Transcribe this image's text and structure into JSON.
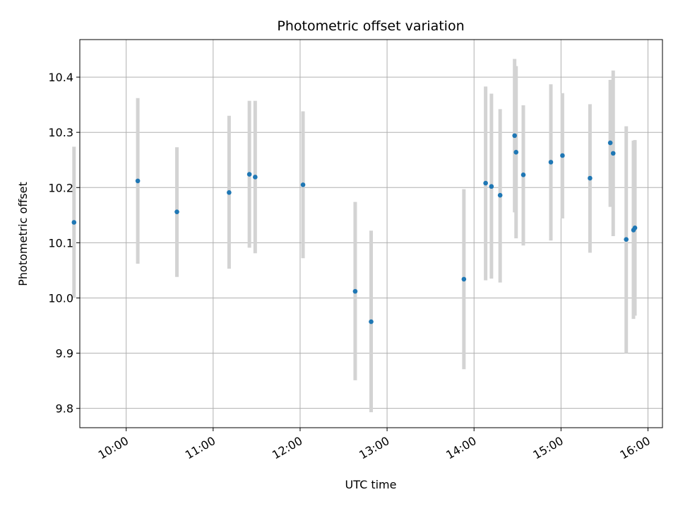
{
  "chart_data": {
    "type": "scatter",
    "title": "Photometric offset variation",
    "xlabel": "UTC time",
    "ylabel": "Photometric offset",
    "xlim": [
      "09:28",
      "16:10"
    ],
    "ylim": [
      9.765,
      10.468
    ],
    "x_ticks": [
      "10:00",
      "11:00",
      "12:00",
      "13:00",
      "14:00",
      "15:00",
      "16:00"
    ],
    "y_ticks": [
      "9.8",
      "9.9",
      "10.0",
      "10.1",
      "10.2",
      "10.3",
      "10.4"
    ],
    "grid": true,
    "marker_color": "#1f77b4",
    "errorbar_color": "#d3d3d3",
    "points": [
      {
        "x": "09:24",
        "y": 10.137,
        "ylo": 10.0,
        "yhi": 10.274
      },
      {
        "x": "10:08",
        "y": 10.212,
        "ylo": 10.062,
        "yhi": 10.362
      },
      {
        "x": "10:35",
        "y": 10.156,
        "ylo": 10.038,
        "yhi": 10.273
      },
      {
        "x": "11:11",
        "y": 10.191,
        "ylo": 10.053,
        "yhi": 10.33
      },
      {
        "x": "11:25",
        "y": 10.224,
        "ylo": 10.091,
        "yhi": 10.357
      },
      {
        "x": "11:29",
        "y": 10.219,
        "ylo": 10.081,
        "yhi": 10.357
      },
      {
        "x": "12:02",
        "y": 10.205,
        "ylo": 10.072,
        "yhi": 10.338
      },
      {
        "x": "12:38",
        "y": 10.012,
        "ylo": 9.851,
        "yhi": 10.174
      },
      {
        "x": "12:49",
        "y": 9.957,
        "ylo": 9.793,
        "yhi": 10.122
      },
      {
        "x": "13:53",
        "y": 10.034,
        "ylo": 9.871,
        "yhi": 10.197
      },
      {
        "x": "14:08",
        "y": 10.208,
        "ylo": 10.032,
        "yhi": 10.383
      },
      {
        "x": "14:12",
        "y": 10.202,
        "ylo": 10.035,
        "yhi": 10.37
      },
      {
        "x": "14:18",
        "y": 10.186,
        "ylo": 10.028,
        "yhi": 10.342
      },
      {
        "x": "14:28",
        "y": 10.294,
        "ylo": 10.155,
        "yhi": 10.433
      },
      {
        "x": "14:29",
        "y": 10.264,
        "ylo": 10.108,
        "yhi": 10.42
      },
      {
        "x": "14:34",
        "y": 10.223,
        "ylo": 10.095,
        "yhi": 10.349
      },
      {
        "x": "14:53",
        "y": 10.246,
        "ylo": 10.104,
        "yhi": 10.387
      },
      {
        "x": "15:01",
        "y": 10.258,
        "ylo": 10.144,
        "yhi": 10.371
      },
      {
        "x": "15:20",
        "y": 10.217,
        "ylo": 10.082,
        "yhi": 10.351
      },
      {
        "x": "15:34",
        "y": 10.281,
        "ylo": 10.165,
        "yhi": 10.395
      },
      {
        "x": "15:36",
        "y": 10.262,
        "ylo": 10.112,
        "yhi": 10.412
      },
      {
        "x": "15:45",
        "y": 10.106,
        "ylo": 9.9,
        "yhi": 10.311
      },
      {
        "x": "15:50",
        "y": 10.123,
        "ylo": 9.962,
        "yhi": 10.285
      },
      {
        "x": "15:51",
        "y": 10.127,
        "ylo": 9.968,
        "yhi": 10.286
      }
    ]
  }
}
